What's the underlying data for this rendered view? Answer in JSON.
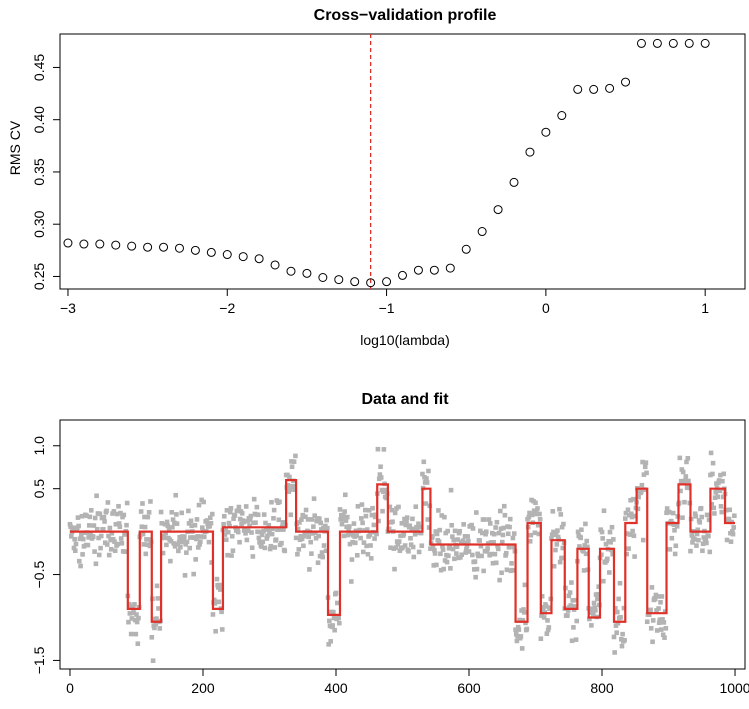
{
  "chart_data": [
    {
      "type": "scatter",
      "title": "Cross−validation profile",
      "xlabel": "log10(lambda)",
      "ylabel": "RMS CV",
      "xlim": [
        -3.05,
        1.25
      ],
      "ylim": [
        0.238,
        0.482
      ],
      "xticks": [
        -3,
        -2,
        -1,
        0,
        1
      ],
      "xtick_labels": [
        "−3",
        "−2",
        "−1",
        "0",
        "1"
      ],
      "yticks": [
        0.25,
        0.3,
        0.35,
        0.4,
        0.45
      ],
      "ytick_labels": [
        "0.25",
        "0.30",
        "0.35",
        "0.40",
        "0.45"
      ],
      "grid": false,
      "vline": {
        "x": -1.1,
        "color": "#e0302a",
        "style": "dashed"
      },
      "series": [
        {
          "marker": "open-circle",
          "color": "#000000",
          "x": [
            -3.0,
            -2.9,
            -2.8,
            -2.7,
            -2.6,
            -2.5,
            -2.4,
            -2.3,
            -2.2,
            -2.1,
            -2.0,
            -1.9,
            -1.8,
            -1.7,
            -1.6,
            -1.5,
            -1.4,
            -1.3,
            -1.2,
            -1.1,
            -1.0,
            -0.9,
            -0.8,
            -0.7,
            -0.6,
            -0.5,
            -0.4,
            -0.3,
            -0.2,
            -0.1,
            0.0,
            0.1,
            0.2,
            0.3,
            0.4,
            0.5,
            0.6,
            0.7,
            0.8,
            0.9,
            1.0
          ],
          "y": [
            0.282,
            0.281,
            0.281,
            0.28,
            0.279,
            0.278,
            0.278,
            0.277,
            0.275,
            0.273,
            0.271,
            0.269,
            0.267,
            0.261,
            0.255,
            0.253,
            0.249,
            0.247,
            0.245,
            0.244,
            0.245,
            0.251,
            0.256,
            0.256,
            0.258,
            0.276,
            0.293,
            0.314,
            0.34,
            0.369,
            0.388,
            0.404,
            0.429,
            0.429,
            0.43,
            0.436,
            0.473,
            0.473,
            0.473,
            0.473,
            0.473
          ]
        }
      ]
    },
    {
      "type": "scatter",
      "title": "Data and fit",
      "xlabel": "",
      "ylabel": "",
      "xlim": [
        -15,
        1015
      ],
      "ylim": [
        -1.6,
        1.3
      ],
      "xticks": [
        0,
        200,
        400,
        600,
        800,
        1000
      ],
      "xtick_labels": [
        "0",
        "200",
        "400",
        "600",
        "800",
        "1000"
      ],
      "yticks": [
        -1.5,
        -0.5,
        0.5,
        1.0
      ],
      "ytick_labels": [
        "−1.5",
        "−0.5",
        "0.5",
        "1.0"
      ],
      "grid": false,
      "points": {
        "n": 1000,
        "marker": "filled-square",
        "color": "#b3b3b3",
        "noise_sd": 0.18
      },
      "fit": {
        "color": "#e0302a",
        "segments": [
          [
            0,
            87,
            0.0
          ],
          [
            87,
            105,
            -0.9
          ],
          [
            105,
            123,
            0.0
          ],
          [
            123,
            137,
            -1.05
          ],
          [
            137,
            215,
            0.0
          ],
          [
            215,
            230,
            -0.9
          ],
          [
            230,
            325,
            0.05
          ],
          [
            325,
            340,
            0.6
          ],
          [
            340,
            388,
            0.0
          ],
          [
            388,
            406,
            -0.97
          ],
          [
            406,
            462,
            0.0
          ],
          [
            462,
            478,
            0.55
          ],
          [
            478,
            530,
            0.0
          ],
          [
            530,
            542,
            0.5
          ],
          [
            542,
            670,
            -0.15
          ],
          [
            670,
            688,
            -1.05
          ],
          [
            688,
            708,
            0.1
          ],
          [
            708,
            724,
            -0.95
          ],
          [
            724,
            744,
            -0.1
          ],
          [
            744,
            763,
            -0.9
          ],
          [
            763,
            780,
            -0.2
          ],
          [
            780,
            797,
            -1.0
          ],
          [
            797,
            818,
            -0.2
          ],
          [
            818,
            835,
            -1.05
          ],
          [
            835,
            852,
            0.1
          ],
          [
            852,
            868,
            0.5
          ],
          [
            868,
            885,
            -0.95
          ],
          [
            885,
            897,
            -0.95
          ],
          [
            897,
            915,
            0.1
          ],
          [
            915,
            933,
            0.55
          ],
          [
            933,
            963,
            0.0
          ],
          [
            963,
            985,
            0.5
          ],
          [
            985,
            1000,
            0.1
          ]
        ]
      }
    }
  ]
}
